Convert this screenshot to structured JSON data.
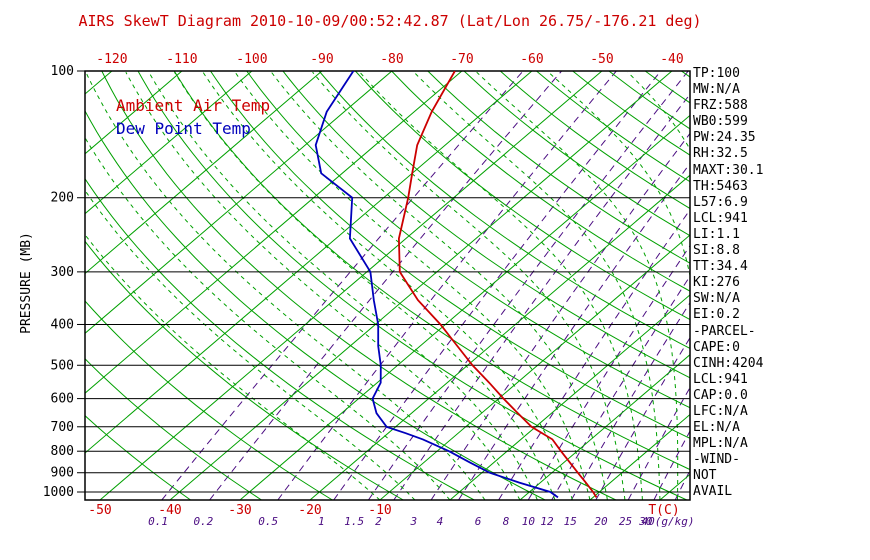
{
  "title": "AIRS SkewT Diagram 2010-10-09/00:52:42.87 (Lat/Lon 26.75/-176.21 deg)",
  "legend": {
    "temp": "Ambient Air Temp",
    "dewpoint": "Dew Point Temp"
  },
  "axes": {
    "pressure_axis_label": "PRESSURE (MB)",
    "pressure_ticks_mb": [
      100,
      200,
      300,
      400,
      500,
      600,
      700,
      800,
      900,
      1000
    ],
    "top_temp_labels_c": [
      -120,
      -110,
      -100,
      -90,
      -80,
      -70,
      -60,
      -50,
      -40
    ],
    "bottom_temp_labels_c": [
      -50,
      -40,
      -30,
      -20,
      -10
    ],
    "temp_unit_label": "T(C)",
    "mixing_ratio_labels": [
      "0.1",
      "0.2",
      "0.5",
      "1",
      "1.5",
      "2",
      "3",
      "4",
      "6",
      "8",
      "10",
      "12",
      "15",
      "20",
      "25",
      "30"
    ],
    "mixing_ratio_unit_label": "40(g/kg)"
  },
  "stats_panel": {
    "lines": [
      "TP:100",
      "MW:N/A",
      "FRZ:588",
      "WB0:599",
      "PW:24.35",
      "RH:32.5",
      "MAXT:30.1",
      "TH:5463",
      "L57:6.9",
      "LCL:941",
      "LI:1.1",
      "SI:8.8",
      "TT:34.4",
      "KI:276",
      "SW:N/A",
      "EI:0.2",
      "-PARCEL-",
      "CAPE:0",
      "CINH:4204",
      "LCL:941",
      "CAP:0.0",
      "LFC:N/A",
      "EL:N/A",
      "MPL:N/A",
      "-WIND-",
      "NOT",
      "AVAIL"
    ]
  },
  "colors": {
    "title_red": "#cc0000",
    "temp_curve": "#cc0000",
    "dewpoint_curve": "#0000bb",
    "grid_green": "#00a000",
    "mixing_violet": "#4b0d82",
    "axis_black": "#000000"
  },
  "chart_data": {
    "type": "line",
    "subtype": "skewt-log-p",
    "title": "AIRS SkewT Diagram 2010-10-09/00:52:42.87 (Lat/Lon 26.75/-176.21 deg)",
    "pressure_axis_mb": [
      100,
      1045
    ],
    "temp_axis_top_c": [
      -120,
      -40
    ],
    "temp_axis_bottom_c": [
      -50,
      40
    ],
    "isotherms_c": {
      "start": -120,
      "end": 30,
      "step": 10
    },
    "dry_adiabats_theta_c": {
      "start": -40,
      "end": 200,
      "step": 10
    },
    "moist_adiabats_c": [
      -10,
      -5,
      0,
      5,
      10,
      12.5,
      15,
      17.5,
      20,
      22.5,
      25,
      27.5,
      30,
      32.5,
      35,
      37.5,
      40
    ],
    "mixing_ratio_g_per_kg": [
      0.1,
      0.2,
      0.5,
      1,
      1.5,
      2,
      3,
      4,
      6,
      8,
      10,
      12,
      15,
      20,
      25,
      30,
      40
    ],
    "series": [
      {
        "name": "Ambient Air Temp",
        "color": "#cc0000",
        "points_p_mb_t_c": [
          [
            100,
            -71
          ],
          [
            125,
            -67.5
          ],
          [
            150,
            -64
          ],
          [
            175,
            -60
          ],
          [
            200,
            -56.5
          ],
          [
            250,
            -51
          ],
          [
            300,
            -45.3
          ],
          [
            350,
            -38
          ],
          [
            400,
            -30.7
          ],
          [
            450,
            -24.7
          ],
          [
            500,
            -19.3
          ],
          [
            550,
            -14
          ],
          [
            600,
            -9.3
          ],
          [
            650,
            -4.8
          ],
          [
            700,
            -0.6
          ],
          [
            750,
            4.5
          ],
          [
            800,
            7.7
          ],
          [
            850,
            10.8
          ],
          [
            900,
            13.7
          ],
          [
            950,
            16.5
          ],
          [
            1000,
            19.1
          ],
          [
            1030,
            20.5
          ]
        ]
      },
      {
        "name": "Dew Point Temp",
        "color": "#0000bb",
        "points_p_mb_t_c": [
          [
            100,
            -85.5
          ],
          [
            125,
            -82.5
          ],
          [
            150,
            -78.5
          ],
          [
            175,
            -73
          ],
          [
            200,
            -64.5
          ],
          [
            250,
            -58
          ],
          [
            300,
            -49.5
          ],
          [
            350,
            -44.3
          ],
          [
            400,
            -39.6
          ],
          [
            450,
            -36
          ],
          [
            500,
            -32.4
          ],
          [
            550,
            -29.5
          ],
          [
            600,
            -28
          ],
          [
            650,
            -25
          ],
          [
            700,
            -21.3
          ],
          [
            725,
            -17.5
          ],
          [
            750,
            -14
          ],
          [
            800,
            -8.3
          ],
          [
            850,
            -3.5
          ],
          [
            900,
            1.1
          ],
          [
            950,
            7
          ],
          [
            1000,
            13
          ],
          [
            1030,
            15
          ]
        ]
      }
    ]
  }
}
